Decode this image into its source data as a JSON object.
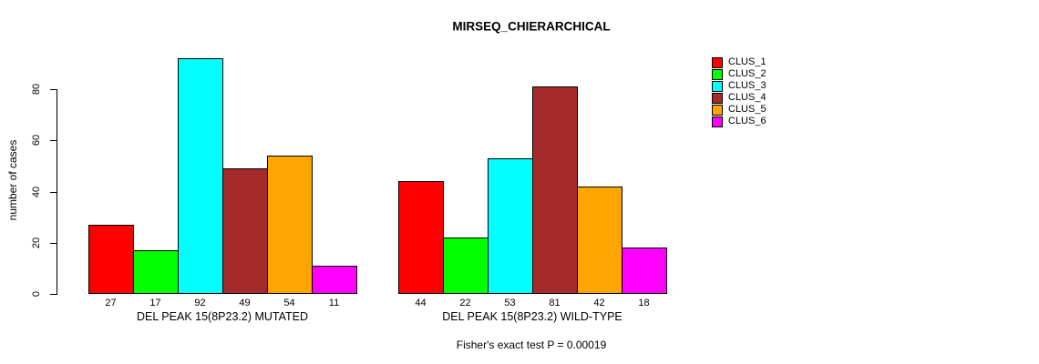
{
  "chart_data": {
    "type": "bar",
    "title": "MIRSEQ_CHIERARCHICAL",
    "ylabel": "number of cases",
    "xlabel": "",
    "yticks": [
      0,
      20,
      40,
      60,
      80
    ],
    "ylim": [
      0,
      92
    ],
    "grid": false,
    "legend_position": "right",
    "legend": [
      {
        "label": "CLUS_1",
        "color": "#FF0000"
      },
      {
        "label": "CLUS_2",
        "color": "#00FF00"
      },
      {
        "label": "CLUS_3",
        "color": "#00FFFF"
      },
      {
        "label": "CLUS_4",
        "color": "#A52A2A"
      },
      {
        "label": "CLUS_5",
        "color": "#FFA500"
      },
      {
        "label": "CLUS_6",
        "color": "#FF00FF"
      }
    ],
    "groups": [
      {
        "label": "DEL PEAK 15(8P23.2) MUTATED",
        "values": [
          27,
          17,
          92,
          49,
          54,
          11
        ]
      },
      {
        "label": "DEL PEAK 15(8P23.2) WILD-TYPE",
        "values": [
          44,
          22,
          53,
          81,
          42,
          18
        ]
      }
    ],
    "bar_value_labels_shown": true,
    "annotation": "Fisher's exact test P = 0.00019"
  }
}
